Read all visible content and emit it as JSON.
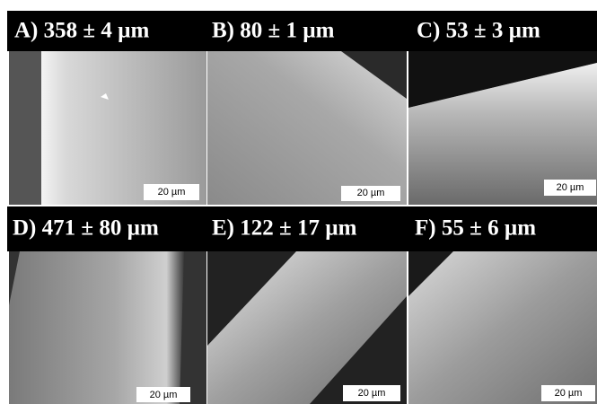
{
  "panels": [
    {
      "label": "A) 358 ± 4 µm",
      "scale_bar": "20 µm"
    },
    {
      "label": "B) 80 ± 1 µm",
      "scale_bar": "20 µm"
    },
    {
      "label": "C) 53 ± 3 µm",
      "scale_bar": "20 µm"
    },
    {
      "label": "D) 471 ± 80 µm",
      "scale_bar": "20 µm"
    },
    {
      "label": "E) 122 ± 17 µm",
      "scale_bar": "20 µm"
    },
    {
      "label": "F) 55 ± 6 µm",
      "scale_bar": "20 µm"
    }
  ]
}
